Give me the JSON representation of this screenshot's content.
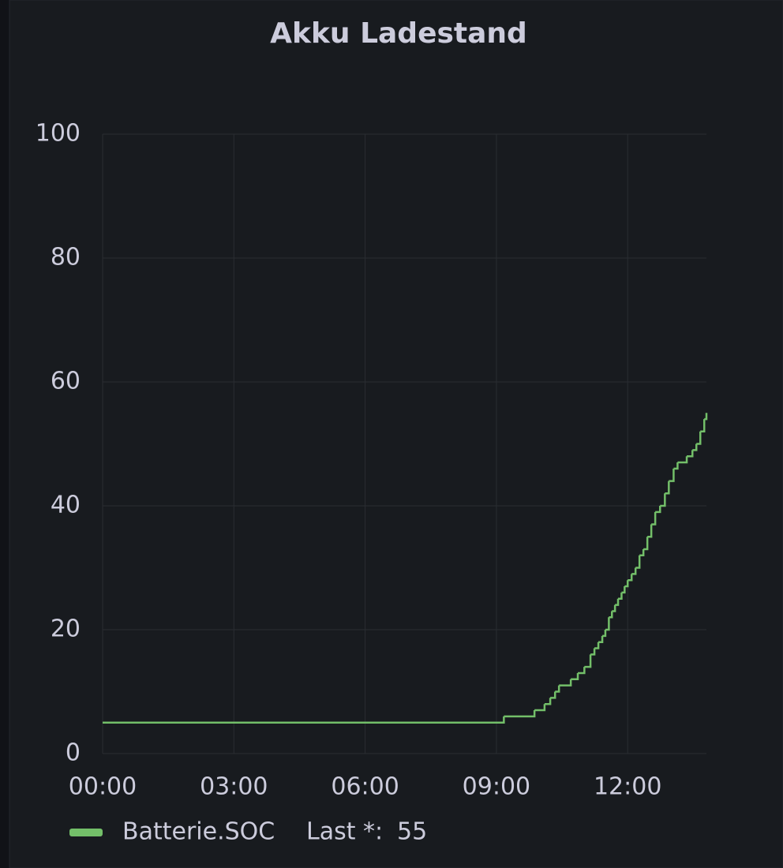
{
  "chart_data": {
    "type": "line",
    "title": "Akku Ladestand",
    "x": [
      0,
      9.17,
      9.87,
      10.1,
      10.23,
      10.34,
      10.43,
      10.7,
      10.86,
      11.01,
      11.15,
      11.24,
      11.33,
      11.42,
      11.49,
      11.57,
      11.64,
      11.71,
      11.78,
      11.86,
      11.93,
      12.0,
      12.09,
      12.18,
      12.27,
      12.36,
      12.45,
      12.54,
      12.63,
      12.74,
      12.85,
      12.94,
      13.05,
      13.14,
      13.35,
      13.48,
      13.57,
      13.66,
      13.75,
      13.8
    ],
    "series": [
      {
        "name": "Batterie.SOC",
        "color": "#73bf69",
        "values": [
          5,
          6,
          7,
          8,
          9,
          10,
          11,
          12,
          13,
          14,
          16,
          17,
          18,
          19,
          20,
          22,
          23,
          24,
          25,
          26,
          27,
          28,
          29,
          30,
          32,
          33,
          35,
          37,
          39,
          40,
          42,
          44,
          46,
          47,
          48,
          49,
          50,
          52,
          54,
          55
        ]
      }
    ],
    "legend_stat_label": "Last *:",
    "xlim": [
      0,
      13.8
    ],
    "xticks": [
      {
        "value": 0,
        "label": "00:00"
      },
      {
        "value": 3,
        "label": "03:00"
      },
      {
        "value": 6,
        "label": "06:00"
      },
      {
        "value": 9,
        "label": "09:00"
      },
      {
        "value": 12,
        "label": "12:00"
      }
    ],
    "ylim": [
      0,
      100
    ],
    "yticks": [
      0,
      20,
      40,
      60,
      80,
      100
    ],
    "grid": true,
    "interpolation": "step-after"
  }
}
